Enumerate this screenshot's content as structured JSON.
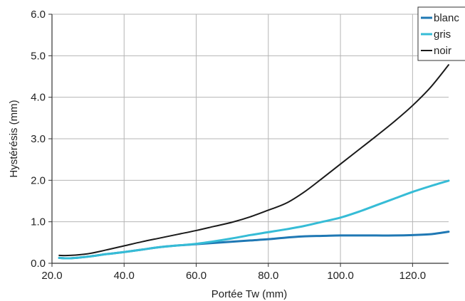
{
  "chart_data": {
    "type": "line",
    "title": "",
    "xlabel": "Portée Tw (mm)",
    "ylabel": "Hystérésis (mm)",
    "xlim": [
      20,
      130
    ],
    "ylim": [
      0,
      6
    ],
    "xticks": [
      20,
      40,
      60,
      80,
      100,
      120
    ],
    "yticks": [
      0,
      1,
      2,
      3,
      4,
      5,
      6
    ],
    "xtick_labels": [
      "20.0",
      "40.0",
      "60.0",
      "80.0",
      "100.0",
      "120.0"
    ],
    "ytick_labels": [
      "0.0",
      "1.0",
      "2.0",
      "3.0",
      "4.0",
      "5.0",
      "6.0"
    ],
    "grid": true,
    "legend_position": "top-right",
    "series": [
      {
        "name": "blanc",
        "color": "#1f78b4",
        "x": [
          22,
          25,
          30,
          35,
          40,
          45,
          50,
          55,
          60,
          65,
          70,
          75,
          80,
          85,
          90,
          95,
          100,
          105,
          110,
          115,
          120,
          125,
          130
        ],
        "y": [
          0.13,
          0.12,
          0.16,
          0.22,
          0.27,
          0.33,
          0.39,
          0.43,
          0.46,
          0.49,
          0.52,
          0.55,
          0.58,
          0.62,
          0.65,
          0.66,
          0.67,
          0.67,
          0.67,
          0.67,
          0.68,
          0.7,
          0.76
        ]
      },
      {
        "name": "gris",
        "color": "#36bcd6",
        "x": [
          22,
          25,
          30,
          35,
          40,
          45,
          50,
          55,
          60,
          65,
          70,
          75,
          80,
          85,
          90,
          95,
          100,
          105,
          110,
          115,
          120,
          125,
          130
        ],
        "y": [
          0.13,
          0.12,
          0.16,
          0.22,
          0.27,
          0.33,
          0.39,
          0.43,
          0.47,
          0.53,
          0.6,
          0.68,
          0.75,
          0.82,
          0.9,
          1.0,
          1.1,
          1.24,
          1.4,
          1.56,
          1.72,
          1.86,
          1.99
        ]
      },
      {
        "name": "noir",
        "color": "#1a1a1a",
        "x": [
          22,
          25,
          30,
          35,
          40,
          45,
          50,
          55,
          60,
          65,
          70,
          75,
          80,
          85,
          90,
          95,
          100,
          105,
          110,
          115,
          120,
          125,
          130
        ],
        "y": [
          0.19,
          0.19,
          0.23,
          0.32,
          0.42,
          0.52,
          0.61,
          0.7,
          0.79,
          0.89,
          0.99,
          1.12,
          1.28,
          1.45,
          1.72,
          2.05,
          2.39,
          2.73,
          3.07,
          3.42,
          3.8,
          4.24,
          4.78
        ]
      }
    ]
  }
}
